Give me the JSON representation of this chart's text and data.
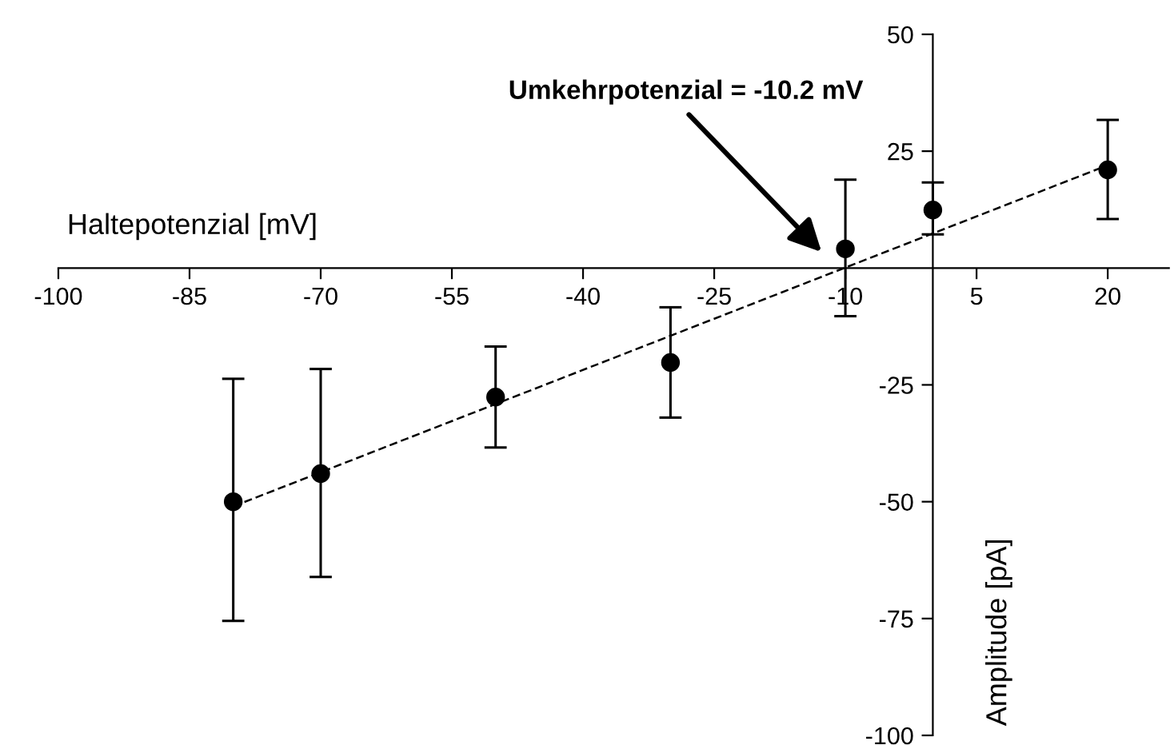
{
  "chart_data": {
    "type": "scatter",
    "xlabel": "Haltepotenzial [mV]",
    "ylabel": "Amplitude [pA]",
    "x": [
      -80,
      -70,
      -50,
      -30,
      -10,
      0,
      20
    ],
    "series": [
      {
        "color": "#000000",
        "marker": "circle",
        "values": [
          -50,
          -44,
          -27.6,
          -20.2,
          4.1,
          12.4,
          21
        ],
        "errors": [
          [
            -75.5,
            -23.7
          ],
          [
            -66.1,
            -21.6
          ],
          [
            -38.4,
            -16.8
          ],
          [
            -32,
            -8.4
          ],
          [
            -10.3,
            18.9
          ],
          [
            7.2,
            18.3
          ],
          [
            10.5,
            31.7
          ]
        ]
      },
      {
        "type": "line",
        "color": "#000000",
        "line_style": "dashed",
        "marker": "none",
        "x": [
          -80,
          20
        ],
        "values": [
          -51,
          22
        ]
      }
    ],
    "annotations": [
      "Umkehrpotenzial = -10.2 mV"
    ],
    "xlim": [
      -100,
      27
    ],
    "xticks": [
      -100,
      -85,
      -70,
      -55,
      -40,
      -25,
      -10,
      5,
      20
    ],
    "ylim": [
      -100,
      50
    ],
    "yticks": [
      -100,
      -75,
      -50,
      -25,
      25,
      50
    ],
    "grid": false,
    "legend": false
  }
}
